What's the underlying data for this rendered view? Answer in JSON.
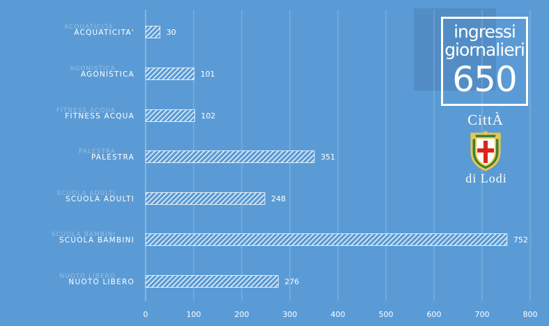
{
  "chart_data": {
    "type": "bar",
    "orientation": "horizontal",
    "categories": [
      "ACQUATICITA'",
      "AGONISTICA",
      "FITNESS ACQUA",
      "PALESTRA",
      "SCUOLA ADULTI",
      "SCUOLA BAMBINI",
      "NUOTO LIBERO"
    ],
    "values": [
      30,
      101,
      102,
      351,
      248,
      752,
      276
    ],
    "xlim": [
      0,
      800
    ],
    "xticks": [
      0,
      100,
      200,
      300,
      400,
      500,
      600,
      700,
      800
    ],
    "grid": true,
    "bar_fill": "hatched white",
    "background": "#5b9bd5"
  },
  "badge": {
    "line1": "ingressi",
    "line2": "giornalieri",
    "number": "650"
  },
  "logo": {
    "top": "CittÀ",
    "bottom": "di Lodi"
  }
}
